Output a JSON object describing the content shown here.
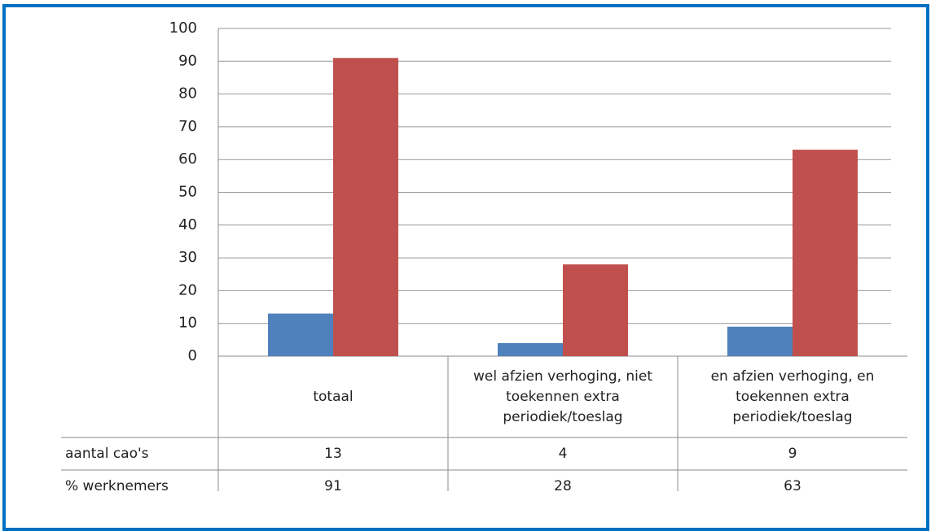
{
  "chart_data": {
    "type": "bar",
    "categories": [
      "totaal",
      "wel afzien verhoging, niet toekennen extra periodiek/toeslag",
      "en afzien verhoging, en toekennen extra periodiek/toeslag"
    ],
    "series": [
      {
        "name": "aantal cao's",
        "color": "#4f81bd",
        "values": [
          13,
          4,
          9
        ]
      },
      {
        "name": "% werknemers",
        "color": "#c0504d",
        "values": [
          91,
          28,
          63
        ]
      }
    ],
    "ylim": [
      0,
      100
    ],
    "yticks": [
      0,
      10,
      20,
      30,
      40,
      50,
      60,
      70,
      80,
      90,
      100
    ],
    "grid": true
  }
}
